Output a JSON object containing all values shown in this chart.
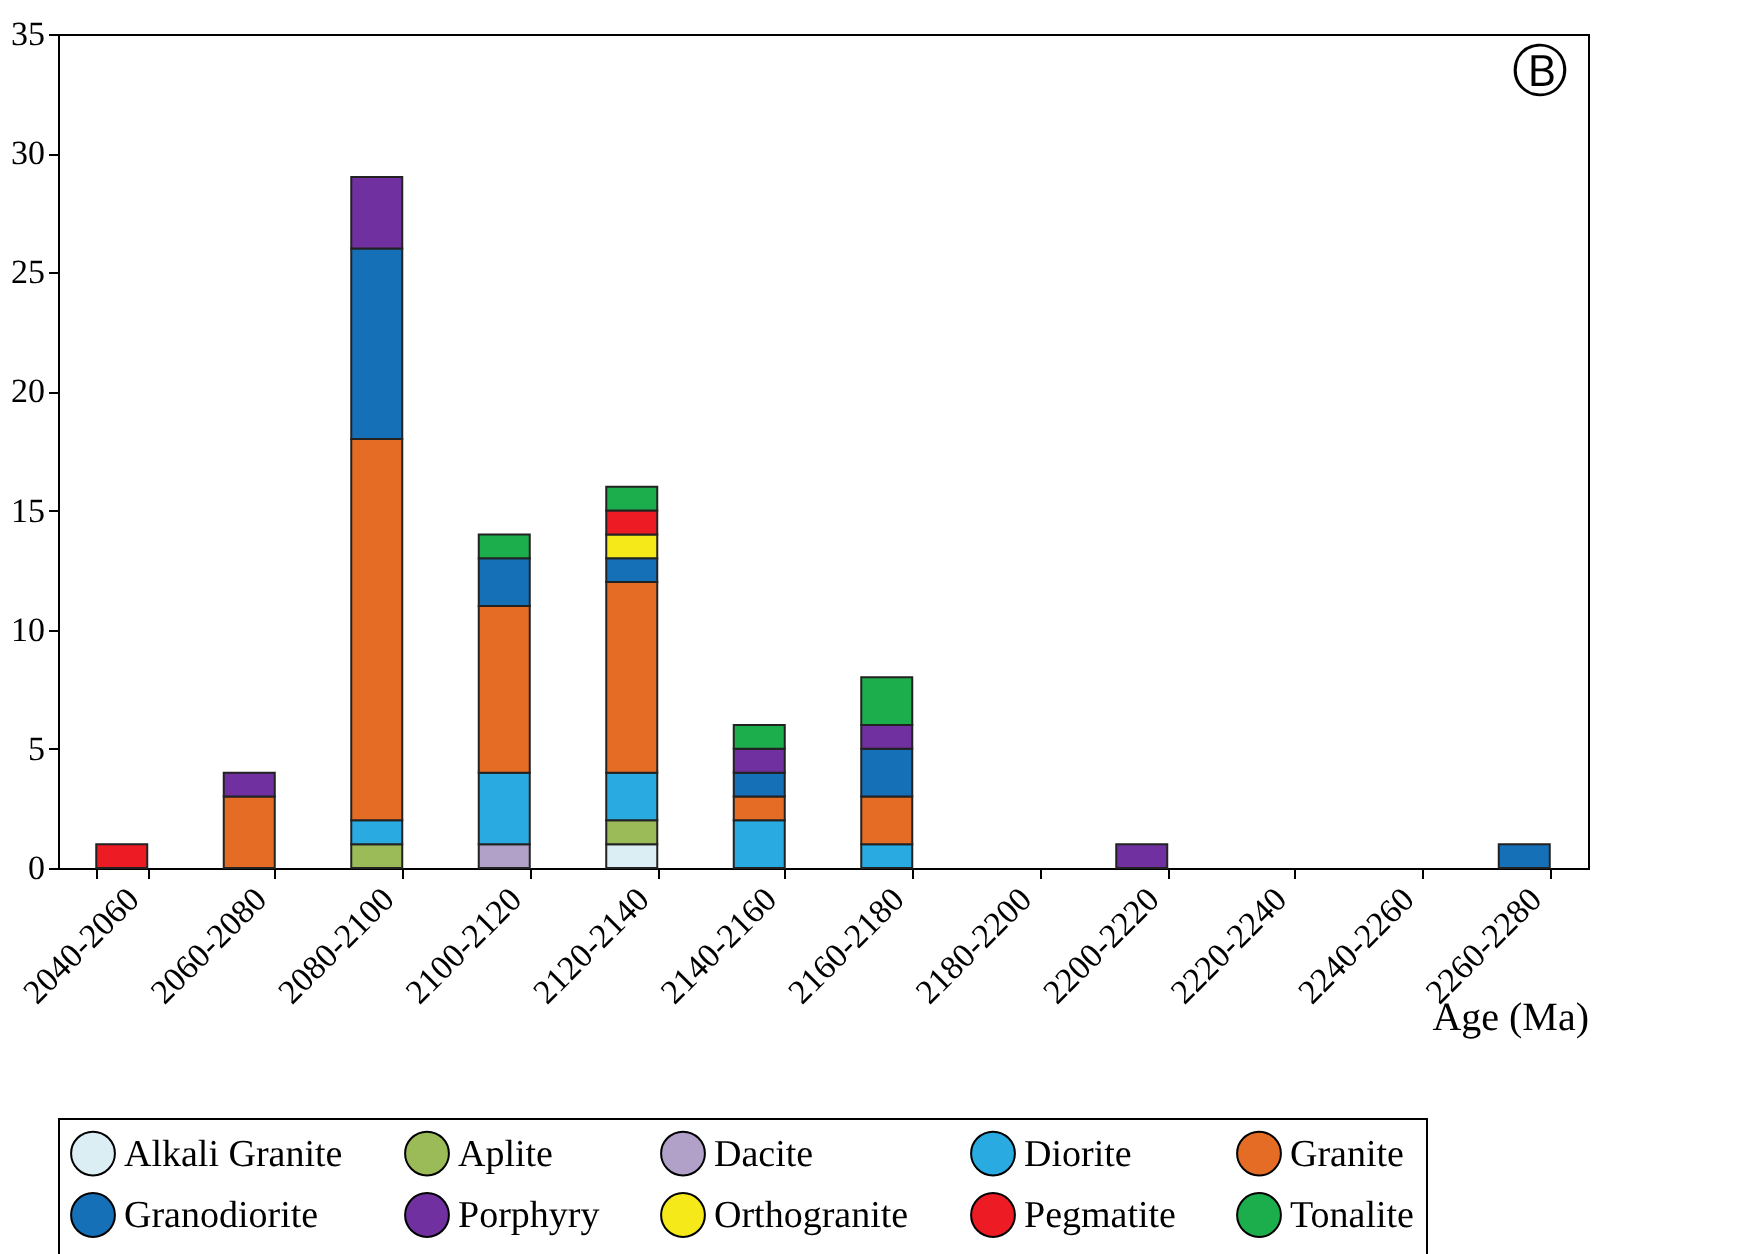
{
  "chart_data": {
    "type": "bar",
    "stacked": true,
    "xlabel": "Age (Ma)",
    "annotations": [
      "Ⓑ"
    ],
    "categories": [
      "2040-2060",
      "2060-2080",
      "2080-2100",
      "2100-2120",
      "2120-2140",
      "2140-2160",
      "2160-2180",
      "2180-2200",
      "2200-2220",
      "2220-2240",
      "2240-2260",
      "2260-2280"
    ],
    "ylim": [
      0,
      35
    ],
    "yticks": [
      0,
      5,
      10,
      15,
      20,
      25,
      30,
      35
    ],
    "grid": false,
    "legend": "bottom",
    "series": [
      {
        "name": "Alkali Granite",
        "color": "#daeef3",
        "values": [
          null,
          null,
          null,
          null,
          1,
          null,
          null,
          null,
          null,
          null,
          null,
          null
        ]
      },
      {
        "name": "Aplite",
        "color": "#9bbb59",
        "values": [
          null,
          null,
          1,
          null,
          1,
          null,
          null,
          null,
          null,
          null,
          null,
          null
        ]
      },
      {
        "name": "Dacite",
        "color": "#b1a0c7",
        "values": [
          null,
          null,
          null,
          1,
          null,
          null,
          null,
          null,
          null,
          null,
          null,
          null
        ]
      },
      {
        "name": "Diorite",
        "color": "#29abe2",
        "values": [
          null,
          null,
          1,
          3,
          2,
          2,
          1,
          null,
          null,
          null,
          null,
          null
        ]
      },
      {
        "name": "Granite",
        "color": "#e46c25",
        "values": [
          null,
          3,
          16,
          7,
          8,
          1,
          2,
          null,
          null,
          null,
          null,
          null
        ]
      },
      {
        "name": "Granodiorite",
        "color": "#1570b8",
        "values": [
          null,
          null,
          8,
          2,
          1,
          1,
          2,
          null,
          null,
          null,
          null,
          1
        ]
      },
      {
        "name": "Porphyry",
        "color": "#7030a0",
        "values": [
          null,
          1,
          3,
          null,
          null,
          1,
          1,
          null,
          1,
          null,
          null,
          null
        ]
      },
      {
        "name": "Orthogranite",
        "color": "#f5e919",
        "values": [
          null,
          null,
          null,
          null,
          1,
          null,
          null,
          null,
          null,
          null,
          null,
          null
        ]
      },
      {
        "name": "Pegmatite",
        "color": "#ed1c24",
        "values": [
          1,
          null,
          null,
          null,
          1,
          null,
          null,
          null,
          null,
          null,
          null,
          null
        ]
      },
      {
        "name": "Tonalite",
        "color": "#1cad4d",
        "values": [
          null,
          null,
          null,
          1,
          1,
          1,
          2,
          null,
          null,
          null,
          null,
          null
        ]
      }
    ]
  }
}
